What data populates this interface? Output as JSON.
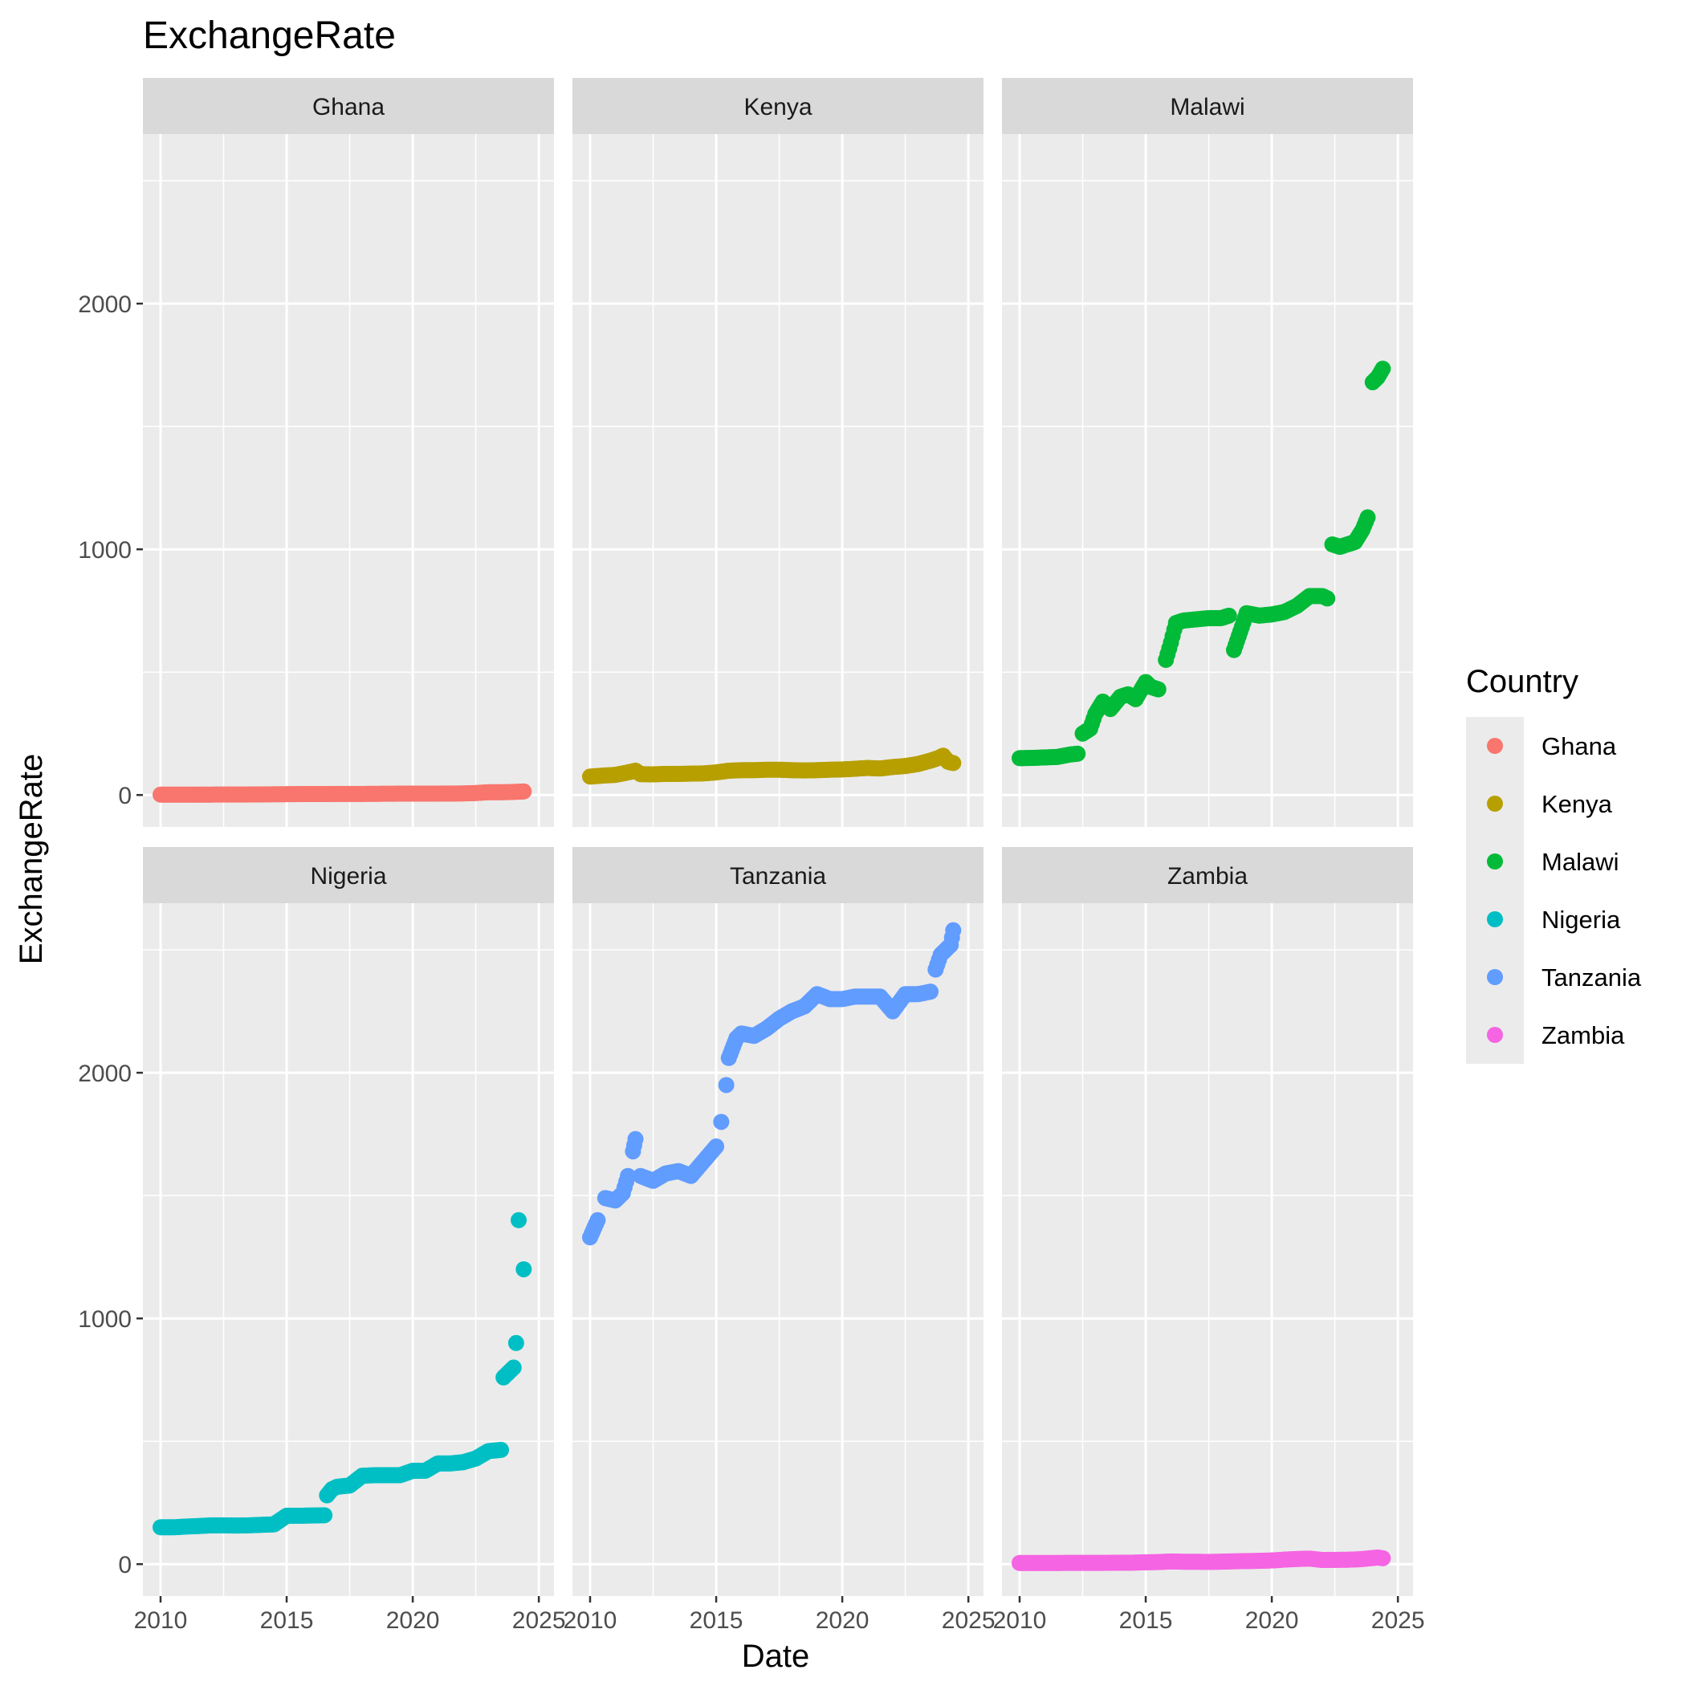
{
  "chart_data": {
    "type": "scatter",
    "title": "ExchangeRate",
    "xlabel": "Date",
    "ylabel": "ExchangeRate",
    "xlim": [
      2009.3,
      2025.6
    ],
    "ylim": [
      -130,
      2690
    ],
    "x_ticks": [
      2010,
      2015,
      2020,
      2025
    ],
    "y_ticks": [
      0,
      1000,
      2000
    ],
    "grid": true,
    "facets": [
      "Ghana",
      "Kenya",
      "Malawi",
      "Nigeria",
      "Tanzania",
      "Zambia"
    ],
    "legend": {
      "title": "Country",
      "position": "right",
      "entries": [
        "Ghana",
        "Kenya",
        "Malawi",
        "Nigeria",
        "Tanzania",
        "Zambia"
      ]
    },
    "series": [
      {
        "name": "Ghana",
        "color": "#F8766D",
        "points": [
          [
            2010.0,
            1.4
          ],
          [
            2010.5,
            1.4
          ],
          [
            2011.0,
            1.5
          ],
          [
            2011.5,
            1.5
          ],
          [
            2012.0,
            1.7
          ],
          [
            2012.5,
            1.9
          ],
          [
            2013.0,
            1.9
          ],
          [
            2013.5,
            2.1
          ],
          [
            2014.0,
            2.4
          ],
          [
            2014.5,
            3.0
          ],
          [
            2015.0,
            3.4
          ],
          [
            2015.5,
            3.8
          ],
          [
            2016.0,
            3.9
          ],
          [
            2016.5,
            3.9
          ],
          [
            2017.0,
            4.4
          ],
          [
            2017.5,
            4.4
          ],
          [
            2018.0,
            4.5
          ],
          [
            2018.5,
            4.8
          ],
          [
            2019.0,
            5.2
          ],
          [
            2019.5,
            5.5
          ],
          [
            2020.0,
            5.7
          ],
          [
            2020.5,
            5.7
          ],
          [
            2021.0,
            5.8
          ],
          [
            2021.5,
            5.9
          ],
          [
            2022.0,
            6.5
          ],
          [
            2022.5,
            8.0
          ],
          [
            2023.0,
            11.5
          ],
          [
            2023.5,
            11.2
          ],
          [
            2024.0,
            12.5
          ],
          [
            2024.4,
            14.5
          ]
        ]
      },
      {
        "name": "Kenya",
        "color": "#B79F00",
        "points": [
          [
            2010.0,
            75
          ],
          [
            2010.5,
            79
          ],
          [
            2011.0,
            82
          ],
          [
            2011.5,
            92
          ],
          [
            2011.8,
            99
          ],
          [
            2012.0,
            85
          ],
          [
            2012.5,
            84
          ],
          [
            2013.0,
            86
          ],
          [
            2013.5,
            86
          ],
          [
            2014.0,
            87
          ],
          [
            2014.5,
            88
          ],
          [
            2015.0,
            92
          ],
          [
            2015.5,
            99
          ],
          [
            2016.0,
            101
          ],
          [
            2016.5,
            101
          ],
          [
            2017.0,
            103
          ],
          [
            2017.5,
            103
          ],
          [
            2018.0,
            101
          ],
          [
            2018.5,
            100
          ],
          [
            2019.0,
            101
          ],
          [
            2019.5,
            103
          ],
          [
            2020.0,
            104
          ],
          [
            2020.5,
            107
          ],
          [
            2021.0,
            110
          ],
          [
            2021.5,
            108
          ],
          [
            2022.0,
            114
          ],
          [
            2022.5,
            118
          ],
          [
            2023.0,
            126
          ],
          [
            2023.5,
            140
          ],
          [
            2023.8,
            150
          ],
          [
            2024.0,
            160
          ],
          [
            2024.2,
            135
          ],
          [
            2024.4,
            130
          ]
        ]
      },
      {
        "name": "Malawi",
        "color": "#00BA38",
        "points": [
          [
            2010.0,
            150
          ],
          [
            2010.5,
            151
          ],
          [
            2011.0,
            153
          ],
          [
            2011.5,
            155
          ],
          [
            2012.0,
            165
          ],
          [
            2012.3,
            168
          ],
          [
            2012.5,
            250
          ],
          [
            2012.8,
            270
          ],
          [
            2013.0,
            330
          ],
          [
            2013.3,
            380
          ],
          [
            2013.6,
            350
          ],
          [
            2014.0,
            400
          ],
          [
            2014.3,
            410
          ],
          [
            2014.6,
            390
          ],
          [
            2015.0,
            460
          ],
          [
            2015.2,
            440
          ],
          [
            2015.5,
            430
          ],
          [
            2015.8,
            550
          ],
          [
            2016.0,
            620
          ],
          [
            2016.2,
            700
          ],
          [
            2016.5,
            710
          ],
          [
            2017.0,
            715
          ],
          [
            2017.5,
            720
          ],
          [
            2018.0,
            720
          ],
          [
            2018.3,
            730
          ],
          [
            2018.5,
            590
          ],
          [
            2019.0,
            740
          ],
          [
            2019.5,
            730
          ],
          [
            2020.0,
            735
          ],
          [
            2020.5,
            745
          ],
          [
            2021.0,
            770
          ],
          [
            2021.5,
            810
          ],
          [
            2022.0,
            810
          ],
          [
            2022.2,
            800
          ],
          [
            2022.4,
            1020
          ],
          [
            2022.7,
            1010
          ],
          [
            2023.0,
            1020
          ],
          [
            2023.3,
            1030
          ],
          [
            2023.6,
            1080
          ],
          [
            2023.8,
            1130
          ],
          [
            2024.0,
            1680
          ],
          [
            2024.2,
            1700
          ],
          [
            2024.4,
            1735
          ]
        ]
      },
      {
        "name": "Nigeria",
        "color": "#00BFC4",
        "points": [
          [
            2010.0,
            150
          ],
          [
            2010.5,
            150
          ],
          [
            2011.0,
            153
          ],
          [
            2011.5,
            155
          ],
          [
            2012.0,
            158
          ],
          [
            2012.5,
            158
          ],
          [
            2013.0,
            157
          ],
          [
            2013.5,
            158
          ],
          [
            2014.0,
            160
          ],
          [
            2014.5,
            162
          ],
          [
            2015.0,
            197
          ],
          [
            2015.5,
            197
          ],
          [
            2016.0,
            198
          ],
          [
            2016.5,
            199
          ],
          [
            2016.6,
            280
          ],
          [
            2016.8,
            305
          ],
          [
            2017.0,
            315
          ],
          [
            2017.5,
            320
          ],
          [
            2018.0,
            360
          ],
          [
            2018.5,
            362
          ],
          [
            2019.0,
            362
          ],
          [
            2019.5,
            362
          ],
          [
            2020.0,
            380
          ],
          [
            2020.5,
            380
          ],
          [
            2021.0,
            410
          ],
          [
            2021.5,
            410
          ],
          [
            2022.0,
            415
          ],
          [
            2022.5,
            430
          ],
          [
            2023.0,
            460
          ],
          [
            2023.5,
            465
          ],
          [
            2023.6,
            760
          ],
          [
            2023.8,
            780
          ],
          [
            2024.0,
            800
          ],
          [
            2024.1,
            900
          ],
          [
            2024.2,
            1400
          ],
          [
            2024.4,
            1200
          ]
        ]
      },
      {
        "name": "Tanzania",
        "color": "#619CFF",
        "points": [
          [
            2010.0,
            1330
          ],
          [
            2010.3,
            1400
          ],
          [
            2010.6,
            1490
          ],
          [
            2011.0,
            1480
          ],
          [
            2011.3,
            1510
          ],
          [
            2011.5,
            1580
          ],
          [
            2011.7,
            1680
          ],
          [
            2011.8,
            1730
          ],
          [
            2012.0,
            1580
          ],
          [
            2012.5,
            1560
          ],
          [
            2013.0,
            1590
          ],
          [
            2013.5,
            1600
          ],
          [
            2014.0,
            1580
          ],
          [
            2014.5,
            1640
          ],
          [
            2015.0,
            1700
          ],
          [
            2015.2,
            1800
          ],
          [
            2015.4,
            1950
          ],
          [
            2015.5,
            2060
          ],
          [
            2015.8,
            2140
          ],
          [
            2016.0,
            2160
          ],
          [
            2016.5,
            2150
          ],
          [
            2017.0,
            2180
          ],
          [
            2017.5,
            2220
          ],
          [
            2018.0,
            2250
          ],
          [
            2018.5,
            2270
          ],
          [
            2019.0,
            2320
          ],
          [
            2019.5,
            2300
          ],
          [
            2020.0,
            2300
          ],
          [
            2020.5,
            2310
          ],
          [
            2021.0,
            2310
          ],
          [
            2021.5,
            2310
          ],
          [
            2022.0,
            2250
          ],
          [
            2022.5,
            2320
          ],
          [
            2023.0,
            2320
          ],
          [
            2023.5,
            2330
          ],
          [
            2023.7,
            2420
          ],
          [
            2023.9,
            2480
          ],
          [
            2024.1,
            2500
          ],
          [
            2024.3,
            2520
          ],
          [
            2024.4,
            2580
          ]
        ]
      },
      {
        "name": "Zambia",
        "color": "#F564E3",
        "points": [
          [
            2010.0,
            4.8
          ],
          [
            2010.5,
            4.8
          ],
          [
            2011.0,
            4.8
          ],
          [
            2011.5,
            4.9
          ],
          [
            2012.0,
            5.1
          ],
          [
            2012.5,
            5.2
          ],
          [
            2013.0,
            5.3
          ],
          [
            2013.5,
            5.4
          ],
          [
            2014.0,
            6.0
          ],
          [
            2014.5,
            6.2
          ],
          [
            2015.0,
            7.5
          ],
          [
            2015.5,
            8.5
          ],
          [
            2016.0,
            11.0
          ],
          [
            2016.5,
            9.8
          ],
          [
            2017.0,
            9.7
          ],
          [
            2017.5,
            9.2
          ],
          [
            2018.0,
            10.0
          ],
          [
            2018.5,
            11.5
          ],
          [
            2019.0,
            12.5
          ],
          [
            2019.5,
            13.5
          ],
          [
            2020.0,
            15.0
          ],
          [
            2020.5,
            18.5
          ],
          [
            2021.0,
            21.0
          ],
          [
            2021.5,
            22.5
          ],
          [
            2022.0,
            17.0
          ],
          [
            2022.5,
            17.5
          ],
          [
            2023.0,
            18.0
          ],
          [
            2023.5,
            20.0
          ],
          [
            2024.0,
            25.0
          ],
          [
            2024.2,
            27.0
          ],
          [
            2024.4,
            24.0
          ]
        ]
      }
    ]
  }
}
